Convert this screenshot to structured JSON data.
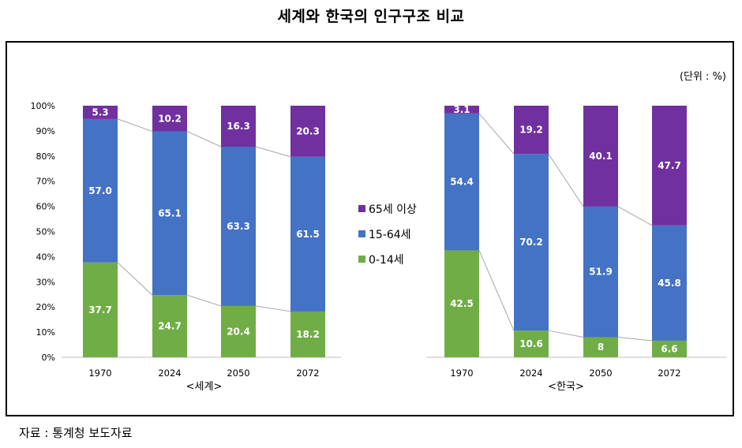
{
  "title": "세계와 한국의 인구구조 비교",
  "unit": "(단위 : %)",
  "source": "자료 : 통계청 보도자료",
  "colors": {
    "age65plus": "#7030a0",
    "age15to64": "#4472c4",
    "age0to14": "#70ad47",
    "connector": "#a6a6a6"
  },
  "legend": [
    "65세 이상",
    "15-64세",
    "0-14세"
  ],
  "chart_data": [
    {
      "type": "bar",
      "stacked": true,
      "subtitle": "<세계>",
      "categories": [
        "1970",
        "2024",
        "2050",
        "2072"
      ],
      "ylim": [
        0,
        100
      ],
      "yticks": [
        "0%",
        "10%",
        "20%",
        "30%",
        "40%",
        "50%",
        "60%",
        "70%",
        "80%",
        "90%",
        "100%"
      ],
      "series": [
        {
          "name": "0-14세",
          "values": [
            37.7,
            24.7,
            20.4,
            18.2
          ],
          "labels": [
            "37.7",
            "24.7",
            "20.4",
            "18.2"
          ]
        },
        {
          "name": "15-64세",
          "values": [
            57.0,
            65.1,
            63.3,
            61.5
          ],
          "labels": [
            "57.0",
            "65.1",
            "63.3",
            "61.5"
          ]
        },
        {
          "name": "65세 이상",
          "values": [
            5.3,
            10.2,
            16.3,
            20.3
          ],
          "labels": [
            "5.3",
            "10.2",
            "16.3",
            "20.3"
          ]
        }
      ]
    },
    {
      "type": "bar",
      "stacked": true,
      "subtitle": "<한국>",
      "categories": [
        "1970",
        "2024",
        "2050",
        "2072"
      ],
      "ylim": [
        0,
        100
      ],
      "series": [
        {
          "name": "0-14세",
          "values": [
            42.5,
            10.6,
            8,
            6.6
          ],
          "labels": [
            "42.5",
            "10.6",
            "8",
            "6.6"
          ]
        },
        {
          "name": "15-64세",
          "values": [
            54.4,
            70.2,
            51.9,
            45.8
          ],
          "labels": [
            "54.4",
            "70.2",
            "51.9",
            "45.8"
          ]
        },
        {
          "name": "65세 이상",
          "values": [
            3.1,
            19.2,
            40.1,
            47.7
          ],
          "labels": [
            "3.1",
            "19.2",
            "40.1",
            "47.7"
          ]
        }
      ]
    }
  ]
}
